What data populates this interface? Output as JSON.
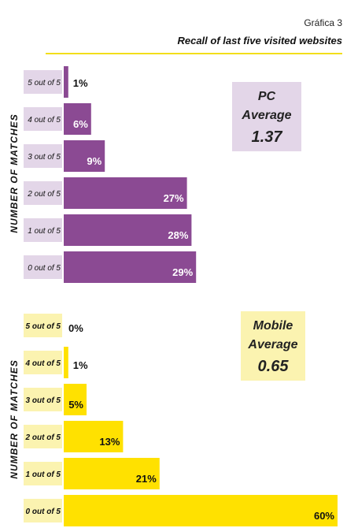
{
  "header": {
    "label": "Gráfica 3",
    "title": "Recall of last five visited websites"
  },
  "chart_data": [
    {
      "type": "bar",
      "orientation": "horizontal",
      "categories": [
        "5 out of 5",
        "4 out of 5",
        "3 out of 5",
        "2 out of 5",
        "1 out of 5",
        "0 out of 5"
      ],
      "values": [
        1,
        6,
        9,
        27,
        28,
        29
      ],
      "value_labels": [
        "1%",
        "6%",
        "9%",
        "27%",
        "28%",
        "29%"
      ],
      "ylabel": "NUMBER OF MATCHES",
      "xlim": [
        0,
        60
      ],
      "box": {
        "line1": "PC",
        "line2": "Average",
        "line3": "1.37"
      },
      "colors": {
        "bar": "#8b4a93",
        "label_bg": "#e3d6e8",
        "box_bg": "#e3d6e8",
        "value_text_inside": "#ffffff"
      }
    },
    {
      "type": "bar",
      "orientation": "horizontal",
      "categories": [
        "5 out of 5",
        "4 out of 5",
        "3 out of 5",
        "2 out of 5",
        "1 out of 5",
        "0 out of 5"
      ],
      "values": [
        0,
        1,
        5,
        13,
        21,
        60
      ],
      "value_labels": [
        "0%",
        "1%",
        "5%",
        "13%",
        "21%",
        "60%"
      ],
      "ylabel": "NUMBER OF MATCHES",
      "xlim": [
        0,
        60
      ],
      "box": {
        "line1": "Mobile",
        "line2": "Average",
        "line3": "0.65"
      },
      "colors": {
        "bar": "#ffe100",
        "label_bg": "#fbf3b0",
        "box_bg": "#fbf3b0",
        "value_text_inside": "#111111"
      }
    }
  ]
}
